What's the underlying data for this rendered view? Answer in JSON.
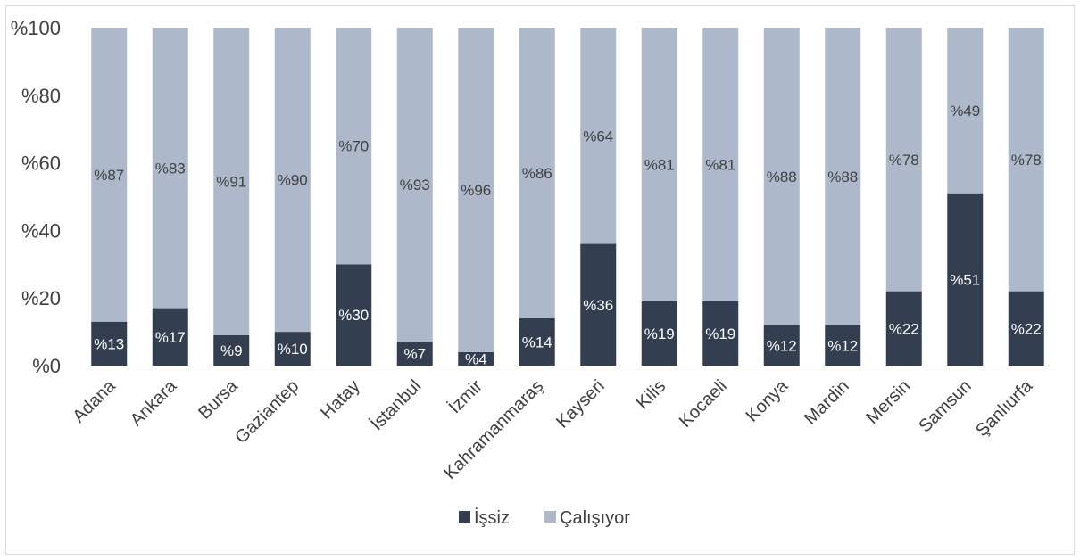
{
  "chart_data": {
    "type": "bar",
    "stacked": true,
    "percent_stacked": true,
    "categories": [
      "Adana",
      "Ankara",
      "Bursa",
      "Gaziantep",
      "Hatay",
      "İstanbul",
      "İzmir",
      "Kahramanmaraş",
      "Kayseri",
      "Kilis",
      "Kocaeli",
      "Konya",
      "Mardin",
      "Mersin",
      "Samsun",
      "Şanlıurfa"
    ],
    "series": [
      {
        "name": "İşsiz",
        "color": "#333f50",
        "values": [
          13,
          17,
          9,
          10,
          30,
          7,
          4,
          14,
          36,
          19,
          19,
          12,
          12,
          22,
          51,
          22
        ],
        "labels": [
          "%13",
          "%17",
          "%9",
          "%10",
          "%30",
          "%7",
          "%4",
          "%14",
          "%36",
          "%19",
          "%19",
          "%12",
          "%12",
          "%22",
          "%51",
          "%22"
        ]
      },
      {
        "name": "Çalışıyor",
        "color": "#adb9ca",
        "values": [
          87,
          83,
          91,
          90,
          70,
          93,
          96,
          86,
          64,
          81,
          81,
          88,
          88,
          78,
          49,
          78
        ],
        "labels": [
          "%87",
          "%83",
          "%91",
          "%90",
          "%70",
          "%93",
          "%96",
          "%86",
          "%64",
          "%81",
          "%81",
          "%88",
          "%88",
          "%78",
          "%49",
          "%78"
        ]
      }
    ],
    "yticks": [
      "%0",
      "%20",
      "%40",
      "%60",
      "%80",
      "%100"
    ],
    "ylim": [
      0,
      100
    ],
    "legend_position": "bottom",
    "grid": false
  }
}
